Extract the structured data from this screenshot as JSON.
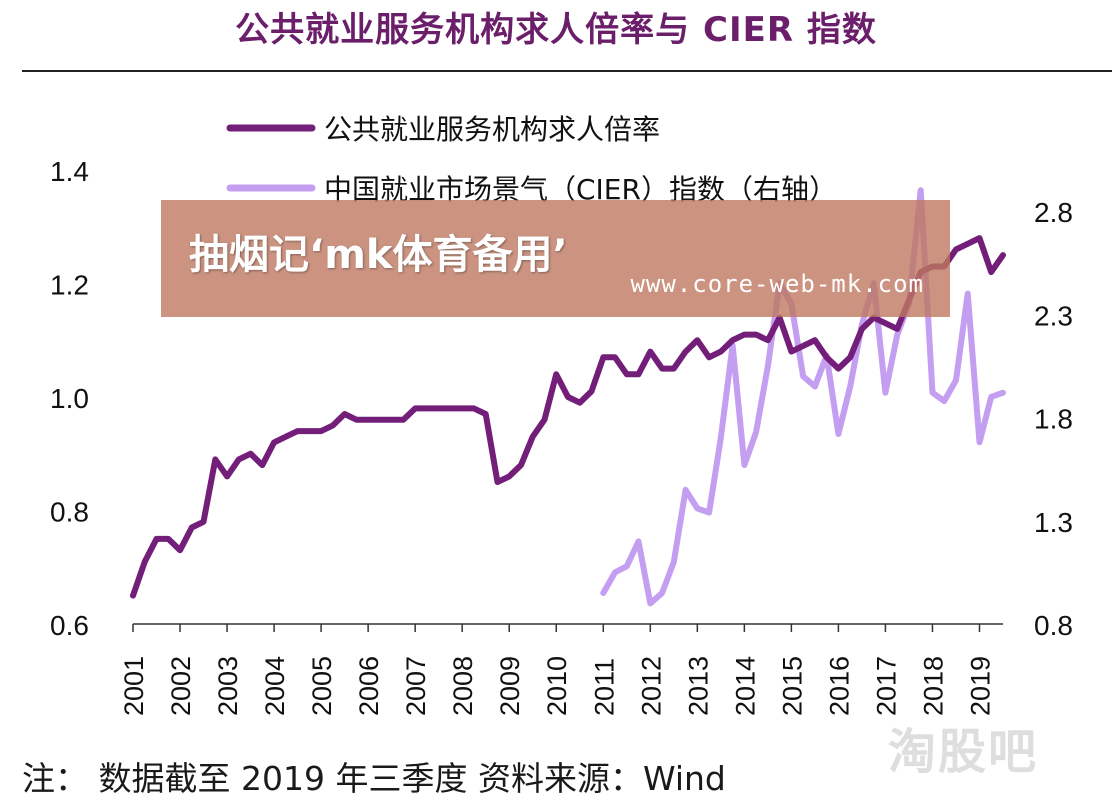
{
  "chart_data": {
    "type": "line",
    "title": "公共就业服务机构求人倍率与 CIER 指数",
    "x_tick_labels": [
      "2001",
      "2002",
      "2003",
      "2004",
      "2005",
      "2006",
      "2007",
      "2008",
      "2009",
      "2010",
      "2011",
      "2012",
      "2013",
      "2014",
      "2015",
      "2016",
      "2017",
      "2018",
      "2019"
    ],
    "ylim_left": [
      0.6,
      1.4
    ],
    "yticks_left": [
      "0.6",
      "0.8",
      "1.0",
      "1.2",
      "1.4"
    ],
    "ylim_right": [
      0.8,
      2.8
    ],
    "yticks_right": [
      "0.8",
      "1.3",
      "1.8",
      "2.3",
      "2.8"
    ],
    "legend_position": "top-left",
    "grid": false,
    "series": [
      {
        "name": "公共就业服务机构求人倍率",
        "axis": "left",
        "color": "#731f7a",
        "x": [
          2001.0,
          2001.25,
          2001.5,
          2001.75,
          2002.0,
          2002.25,
          2002.5,
          2002.75,
          2003.0,
          2003.25,
          2003.5,
          2003.75,
          2004.0,
          2004.25,
          2004.5,
          2004.75,
          2005.0,
          2005.25,
          2005.5,
          2005.75,
          2006.0,
          2006.25,
          2006.5,
          2006.75,
          2007.0,
          2007.25,
          2007.5,
          2007.75,
          2008.0,
          2008.25,
          2008.5,
          2008.75,
          2009.0,
          2009.25,
          2009.5,
          2009.75,
          2010.0,
          2010.25,
          2010.5,
          2010.75,
          2011.0,
          2011.25,
          2011.5,
          2011.75,
          2012.0,
          2012.25,
          2012.5,
          2012.75,
          2013.0,
          2013.25,
          2013.5,
          2013.75,
          2014.0,
          2014.25,
          2014.5,
          2014.75,
          2015.0,
          2015.25,
          2015.5,
          2015.75,
          2016.0,
          2016.25,
          2016.5,
          2016.75,
          2017.0,
          2017.25,
          2017.5,
          2017.75,
          2018.0,
          2018.25,
          2018.5,
          2018.75,
          2019.0,
          2019.25,
          2019.5
        ],
        "values": [
          0.65,
          0.71,
          0.75,
          0.75,
          0.73,
          0.77,
          0.78,
          0.89,
          0.86,
          0.89,
          0.9,
          0.88,
          0.92,
          0.93,
          0.94,
          0.94,
          0.94,
          0.95,
          0.97,
          0.96,
          0.96,
          0.96,
          0.96,
          0.96,
          0.98,
          0.98,
          0.98,
          0.98,
          0.98,
          0.98,
          0.97,
          0.85,
          0.86,
          0.88,
          0.93,
          0.96,
          1.04,
          1.0,
          0.99,
          1.01,
          1.07,
          1.07,
          1.04,
          1.04,
          1.08,
          1.05,
          1.05,
          1.08,
          1.1,
          1.07,
          1.08,
          1.1,
          1.11,
          1.11,
          1.1,
          1.14,
          1.08,
          1.09,
          1.1,
          1.07,
          1.05,
          1.07,
          1.12,
          1.14,
          1.13,
          1.12,
          1.17,
          1.22,
          1.23,
          1.23,
          1.26,
          1.27,
          1.28,
          1.22,
          1.25
        ]
      },
      {
        "name": "中国就业市场景气（CIER）指数（右轴）",
        "axis": "right",
        "color": "#c49ef0",
        "x": [
          2011.0,
          2011.25,
          2011.5,
          2011.75,
          2012.0,
          2012.25,
          2012.5,
          2012.75,
          2013.0,
          2013.25,
          2013.5,
          2013.75,
          2014.0,
          2014.25,
          2014.5,
          2014.75,
          2015.0,
          2015.25,
          2015.5,
          2015.75,
          2016.0,
          2016.25,
          2016.5,
          2016.75,
          2017.0,
          2017.25,
          2017.5,
          2017.75,
          2018.0,
          2018.25,
          2018.5,
          2018.75,
          2019.0,
          2019.25,
          2019.5
        ],
        "values": [
          0.95,
          1.05,
          1.08,
          1.2,
          0.9,
          0.95,
          1.1,
          1.45,
          1.36,
          1.34,
          1.7,
          2.15,
          1.57,
          1.73,
          2.05,
          2.45,
          2.35,
          2.0,
          1.95,
          2.1,
          1.72,
          1.95,
          2.25,
          2.45,
          1.92,
          2.2,
          2.35,
          2.9,
          1.92,
          1.88,
          1.98,
          2.4,
          1.68,
          1.9,
          1.92
        ]
      }
    ]
  },
  "note": "注：  数据截至 2019 年三季度  资料来源：Wind",
  "banner": {
    "text": "抽烟记‘mk体育备用’",
    "url": "www.core-web-mk.com"
  },
  "corner_watermark": "淘股吧"
}
